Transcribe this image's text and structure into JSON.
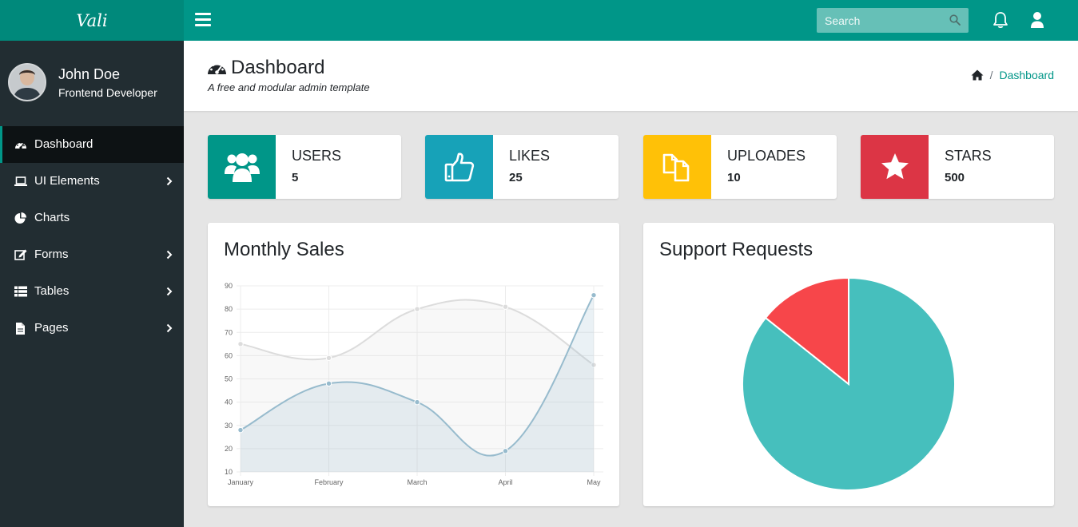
{
  "header": {
    "logo": "Vali",
    "search_placeholder": "Search",
    "icons": [
      "menu-icon",
      "search-icon",
      "bell-icon",
      "user-icon"
    ]
  },
  "sidebar": {
    "user_name": "John Doe",
    "user_role": "Frontend Developer",
    "items": [
      {
        "label": "Dashboard",
        "icon": "dashboard-icon",
        "active": true,
        "has_submenu": false
      },
      {
        "label": "UI Elements",
        "icon": "laptop-icon",
        "active": false,
        "has_submenu": true
      },
      {
        "label": "Charts",
        "icon": "pie-chart-icon",
        "active": false,
        "has_submenu": false
      },
      {
        "label": "Forms",
        "icon": "edit-icon",
        "active": false,
        "has_submenu": true
      },
      {
        "label": "Tables",
        "icon": "table-icon",
        "active": false,
        "has_submenu": true
      },
      {
        "label": "Pages",
        "icon": "file-icon",
        "active": false,
        "has_submenu": true
      }
    ]
  },
  "title_bar": {
    "title": "Dashboard",
    "subtitle": "A free and modular admin template",
    "breadcrumb": [
      "home-icon",
      "/",
      "Dashboard"
    ],
    "breadcrumb_sep": "/",
    "breadcrumb_current": "Dashboard"
  },
  "widgets": [
    {
      "label": "USERS",
      "value": "5",
      "color": "#009688",
      "icon": "users-icon"
    },
    {
      "label": "LIKES",
      "value": "25",
      "color": "#17a2b8",
      "icon": "thumbs-up-icon"
    },
    {
      "label": "UPLOADES",
      "value": "10",
      "color": "#ffc107",
      "icon": "files-icon"
    },
    {
      "label": "STARS",
      "value": "500",
      "color": "#dc3545",
      "icon": "star-icon"
    }
  ],
  "colors": {
    "primary": "#009688",
    "sidebar_bg": "#222d32",
    "sidebar_active": "#0d1214",
    "pie_large": "#46bfbd",
    "pie_small": "#f7464a",
    "series_a": "#dcdcdc",
    "series_b": "#97bbcd"
  },
  "chart_data": [
    {
      "type": "line",
      "title": "Monthly Sales",
      "categories": [
        "January",
        "February",
        "March",
        "April",
        "May"
      ],
      "ylim": [
        10,
        90
      ],
      "yticks": [
        10,
        20,
        30,
        40,
        50,
        60,
        70,
        80,
        90
      ],
      "grid": true,
      "series": [
        {
          "values": [
            65,
            59,
            80,
            81,
            56
          ],
          "color": "#dcdcdc"
        },
        {
          "values": [
            28,
            48,
            40,
            19,
            86
          ],
          "color": "#97bbcd"
        }
      ]
    },
    {
      "type": "pie",
      "title": "Support Requests",
      "slices": [
        {
          "value": 300,
          "color": "#46bfbd"
        },
        {
          "value": 50,
          "color": "#f7464a"
        }
      ]
    }
  ]
}
